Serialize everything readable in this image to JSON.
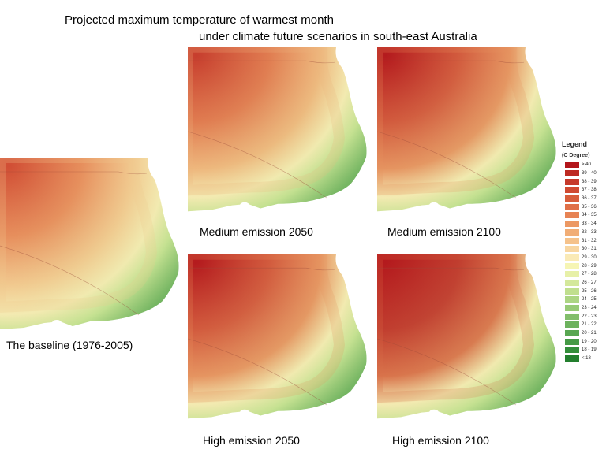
{
  "title_line1": "Projected maximum temperature of warmest month",
  "title_line2": "under climate future scenarios in south-east Australia",
  "maps": [
    {
      "id": "baseline",
      "caption": "The baseline (1976-2005)",
      "heat": 0
    },
    {
      "id": "med2050",
      "caption": "Medium emission 2050",
      "heat": 1
    },
    {
      "id": "med2100",
      "caption": "Medium emission 2100",
      "heat": 2
    },
    {
      "id": "high2050",
      "caption": "High emission 2050",
      "heat": 2
    },
    {
      "id": "high2100",
      "caption": "High emission 2100",
      "heat": 3
    }
  ],
  "legend": {
    "title": "Legend",
    "unit": "(C Degree)",
    "items": [
      {
        "label": "> 40",
        "color": "#b3161b"
      },
      {
        "label": "39 - 40",
        "color": "#bd2a22"
      },
      {
        "label": "38 - 39",
        "color": "#c63a2b"
      },
      {
        "label": "37 - 38",
        "color": "#d04a32"
      },
      {
        "label": "36 - 37",
        "color": "#d85d3b"
      },
      {
        "label": "35 - 36",
        "color": "#e06f47"
      },
      {
        "label": "34 - 35",
        "color": "#e78354"
      },
      {
        "label": "33 - 34",
        "color": "#ec9863"
      },
      {
        "label": "32 - 33",
        "color": "#f1ad76"
      },
      {
        "label": "31 - 32",
        "color": "#f5c28b"
      },
      {
        "label": "30 - 31",
        "color": "#f8d6a1"
      },
      {
        "label": "29 - 30",
        "color": "#faeab6"
      },
      {
        "label": "28 - 29",
        "color": "#f6f5b4"
      },
      {
        "label": "27 - 28",
        "color": "#e7f0a8"
      },
      {
        "label": "26 - 27",
        "color": "#d4e89b"
      },
      {
        "label": "25 - 26",
        "color": "#c0df8e"
      },
      {
        "label": "24 - 25",
        "color": "#acd583"
      },
      {
        "label": "23 - 24",
        "color": "#97ca76"
      },
      {
        "label": "22 - 23",
        "color": "#82be6b"
      },
      {
        "label": "21 - 22",
        "color": "#6db25e"
      },
      {
        "label": "20 - 21",
        "color": "#58a651"
      },
      {
        "label": "19 - 20",
        "color": "#459a45"
      },
      {
        "label": "18 - 19",
        "color": "#338e3a"
      },
      {
        "label": "< 18",
        "color": "#237f2e"
      }
    ]
  }
}
